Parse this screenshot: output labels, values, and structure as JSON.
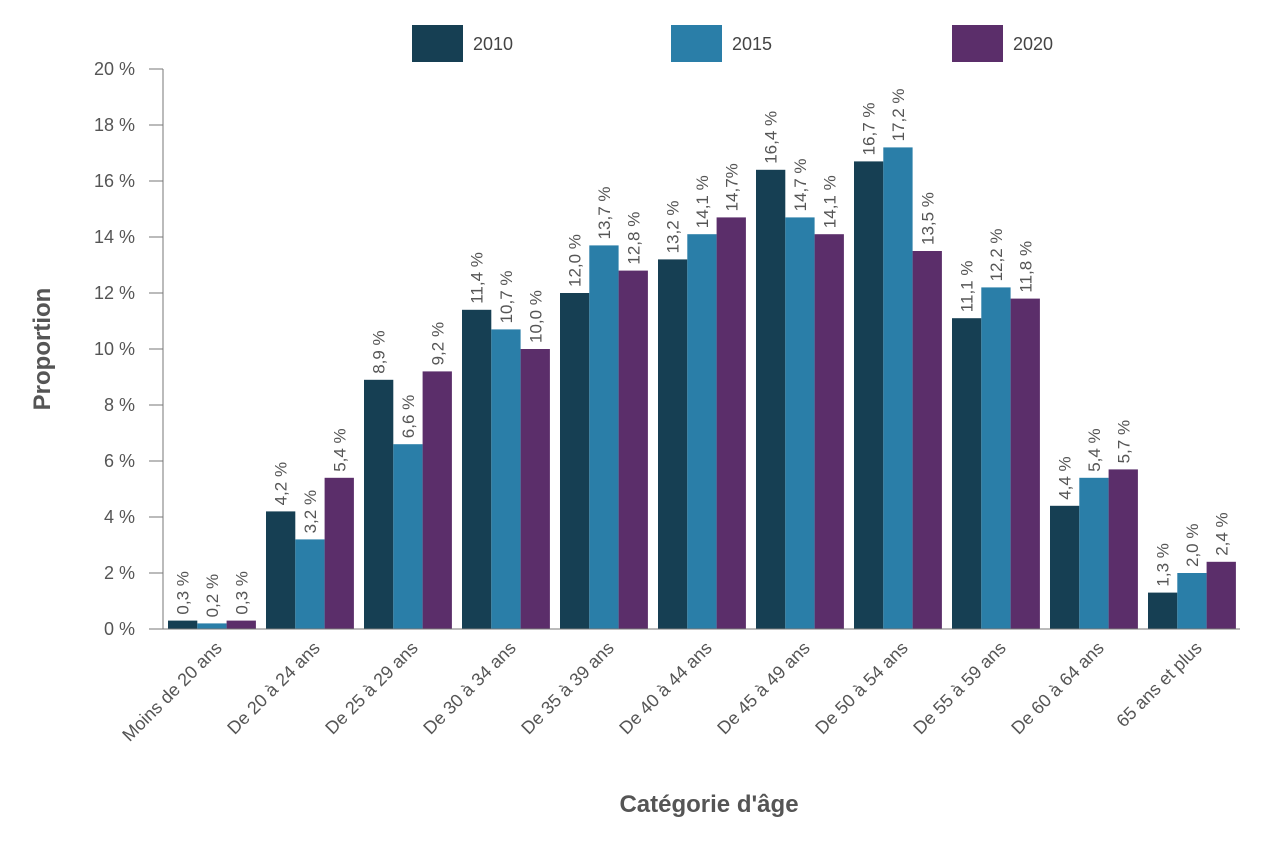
{
  "chart_data": {
    "type": "bar",
    "title": "",
    "xlabel": "Catégorie d'âge",
    "ylabel": "Proportion",
    "ylim": [
      0,
      20
    ],
    "yticks": [
      0,
      2,
      4,
      6,
      8,
      10,
      12,
      14,
      16,
      18,
      20
    ],
    "ytick_labels": [
      "0 %",
      "2 %",
      "4 %",
      "6 %",
      "8 %",
      "10 %",
      "12 %",
      "14 %",
      "16 %",
      "18 %",
      "20 %"
    ],
    "grid": false,
    "legend_position": "top",
    "categories": [
      "Moins de 20 ans",
      "De 20 à 24 ans",
      "De 25 à 29 ans",
      "De 30 à 34 ans",
      "De 35 à 39 ans",
      "De 40 à 44 ans",
      "De 45 à 49 ans",
      "De 50 à 54 ans",
      "De 55 à 59 ans",
      "De 60 à 64 ans",
      "65 ans et plus"
    ],
    "series": [
      {
        "name": "2010",
        "color": "#163f53",
        "values": [
          0.3,
          4.2,
          8.9,
          11.4,
          12.0,
          13.2,
          16.4,
          16.7,
          11.1,
          4.4,
          1.3
        ],
        "labels": [
          "0,3 %",
          "4,2 %",
          "8,9 %",
          "11,4 %",
          "12,0 %",
          "13,2 %",
          "16,4 %",
          "16,7 %",
          "11,1 %",
          "4,4 %",
          "1,3 %"
        ]
      },
      {
        "name": "2015",
        "color": "#2a7ea8",
        "values": [
          0.2,
          3.2,
          6.6,
          10.7,
          13.7,
          14.1,
          14.7,
          17.2,
          12.2,
          5.4,
          2.0
        ],
        "labels": [
          "0,2 %",
          "3,2 %",
          "6,6 %",
          "10,7 %",
          "13,7 %",
          "14,1 %",
          "14,7 %",
          "17,2 %",
          "12,2 %",
          "5,4 %",
          "2,0 %"
        ]
      },
      {
        "name": "2020",
        "color": "#5b2e6a",
        "values": [
          0.3,
          5.4,
          9.2,
          10.0,
          12.8,
          14.7,
          14.1,
          13.5,
          11.8,
          5.7,
          2.4
        ],
        "labels": [
          "0,3 %",
          "5,4 %",
          "9,2 %",
          "10,0 %",
          "12,8 %",
          "14,7%",
          "14,1 %",
          "13,5 %",
          "11,8 %",
          "5,7 %",
          "2,4 %"
        ]
      }
    ]
  }
}
